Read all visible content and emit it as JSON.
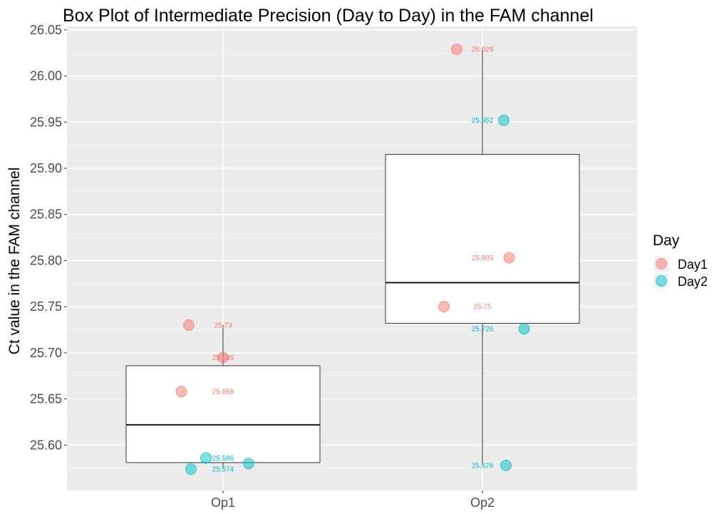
{
  "chart_data": {
    "type": "box",
    "title": "Box Plot of Intermediate Precision (Day to Day) in the FAM channel",
    "xlabel": "",
    "ylabel": "Ct value in the FAM channel",
    "categories": [
      "Op1",
      "Op2"
    ],
    "ylim": [
      25.5,
      26.05
    ],
    "yticks": [
      "25.60",
      "25.65",
      "25.70",
      "25.75",
      "25.80",
      "25.85",
      "25.90",
      "25.95",
      "26.00",
      "26.05"
    ],
    "grid": true,
    "legend": {
      "title": "Day",
      "position": "right",
      "entries": [
        {
          "name": "Day1",
          "color": "#F8766D"
        },
        {
          "name": "Day2",
          "color": "#00BFC4"
        }
      ]
    },
    "boxes": [
      {
        "category": "Op1",
        "min": 25.574,
        "q1": 25.581,
        "median": 25.622,
        "q3": 25.686,
        "max": 25.73
      },
      {
        "category": "Op2",
        "min": 25.578,
        "q1": 25.732,
        "median": 25.776,
        "q3": 25.915,
        "max": 26.029
      }
    ],
    "points": [
      {
        "category": "Op1",
        "day": "Day1",
        "value": 25.73,
        "label": "25.73",
        "jitter": -0.32
      },
      {
        "category": "Op1",
        "day": "Day1",
        "value": 25.695,
        "label": "25.695",
        "jitter": 0.0
      },
      {
        "category": "Op1",
        "day": "Day1",
        "value": 25.658,
        "label": "25.658",
        "jitter": -0.39
      },
      {
        "category": "Op1",
        "day": "Day2",
        "value": 25.586,
        "label": "25.586",
        "jitter": -0.16
      },
      {
        "category": "Op1",
        "day": "Day2",
        "value": 25.574,
        "label": "25.574",
        "jitter": -0.3
      },
      {
        "category": "Op1",
        "day": "Day2",
        "value": 25.58,
        "label": "",
        "jitter": 0.24
      },
      {
        "category": "Op2",
        "day": "Day1",
        "value": 26.029,
        "label": "26.029",
        "jitter": -0.24
      },
      {
        "category": "Op2",
        "day": "Day1",
        "value": 25.803,
        "label": "25.803",
        "jitter": 0.25
      },
      {
        "category": "Op2",
        "day": "Day1",
        "value": 25.75,
        "label": "25.75",
        "jitter": -0.36
      },
      {
        "category": "Op2",
        "day": "Day2",
        "value": 25.952,
        "label": "25.952",
        "jitter": 0.2
      },
      {
        "category": "Op2",
        "day": "Day2",
        "value": 25.726,
        "label": "25.726",
        "jitter": 0.39
      },
      {
        "category": "Op2",
        "day": "Day2",
        "value": 25.578,
        "label": "25.578",
        "jitter": 0.22
      }
    ],
    "colors": {
      "Day1": "#F8766D",
      "Day2": "#00BFC4"
    }
  }
}
